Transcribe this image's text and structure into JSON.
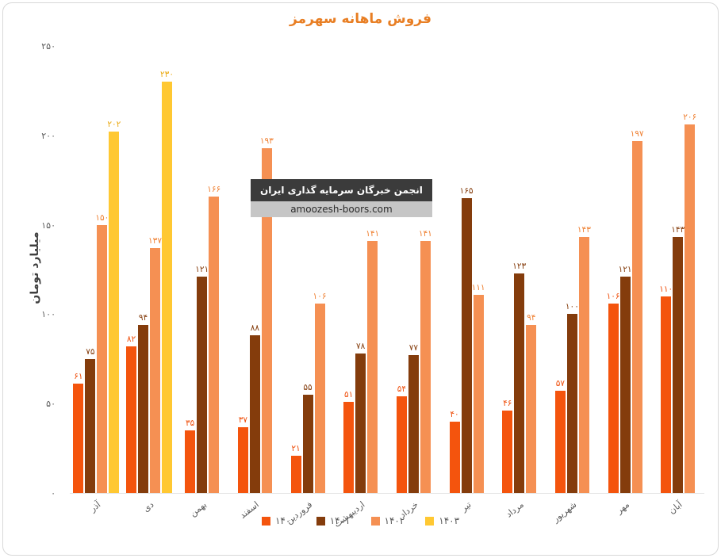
{
  "title": "فروش ماهانه سهرمز",
  "y_axis_label": "میلیارد تومان",
  "watermark": {
    "line1": "انجمن خبرگان سرمایه گذاری ایران",
    "line2": "amoozesh-boors.com"
  },
  "chart_data": {
    "type": "bar",
    "title": "فروش ماهانه سهرمز",
    "ylabel": "میلیارد تومان",
    "ylim": [
      0,
      250
    ],
    "grid": false,
    "legend_position": "bottom",
    "yticks": [
      {
        "value": 0,
        "label": "۰"
      },
      {
        "value": 50,
        "label": "۵۰"
      },
      {
        "value": 100,
        "label": "۱۰۰"
      },
      {
        "value": 150,
        "label": "۱۵۰"
      },
      {
        "value": 200,
        "label": "۲۰۰"
      },
      {
        "value": 250,
        "label": "۲۵۰"
      }
    ],
    "categories": [
      "آذر",
      "دی",
      "بهمن",
      "اسفند",
      "فروردین",
      "اردیبهشت",
      "خرداد",
      "تیر",
      "مرداد",
      "شهریور",
      "مهر",
      "آبان"
    ],
    "series": [
      {
        "name": "۱۴۰۰",
        "color": "#f4540d",
        "label_color": "#ef4f0c",
        "values": [
          61,
          82,
          35,
          37,
          21,
          51,
          54,
          40,
          46,
          57,
          106,
          110
        ],
        "labels": [
          "۶۱",
          "۸۲",
          "۳۵",
          "۳۷",
          "۲۱",
          "۵۱",
          "۵۴",
          "۴۰",
          "۴۶",
          "۵۷",
          "۱۰۶",
          "۱۱۰"
        ]
      },
      {
        "name": "۱۴۰۱",
        "color": "#843c0c",
        "label_color": "#843c0c",
        "values": [
          75,
          94,
          121,
          88,
          55,
          78,
          77,
          165,
          123,
          100,
          121,
          143
        ],
        "labels": [
          "۷۵",
          "۹۴",
          "۱۲۱",
          "۸۸",
          "۵۵",
          "۷۸",
          "۷۷",
          "۱۶۵",
          "۱۲۳",
          "۱۰۰",
          "۱۲۱",
          "۱۴۳"
        ]
      },
      {
        "name": "۱۴۰۲",
        "color": "#f59053",
        "label_color": "#ef8134",
        "values": [
          150,
          137,
          166,
          193,
          106,
          141,
          141,
          111,
          94,
          143,
          197,
          206
        ],
        "labels": [
          "۱۵۰",
          "۱۳۷",
          "۱۶۶",
          "۱۹۳",
          "۱۰۶",
          "۱۴۱",
          "۱۴۱",
          "۱۱۱",
          "۹۴",
          "۱۴۳",
          "۱۹۷",
          "۲۰۶"
        ]
      },
      {
        "name": "۱۴۰۳",
        "color": "#ffc832",
        "label_color": "#eaa911",
        "values": [
          202,
          230,
          null,
          null,
          null,
          null,
          null,
          null,
          null,
          null,
          null,
          null
        ],
        "labels": [
          "۲۰۲",
          "۲۳۰",
          "",
          "",
          "",
          "",
          "",
          "",
          "",
          "",
          "",
          ""
        ]
      }
    ]
  }
}
